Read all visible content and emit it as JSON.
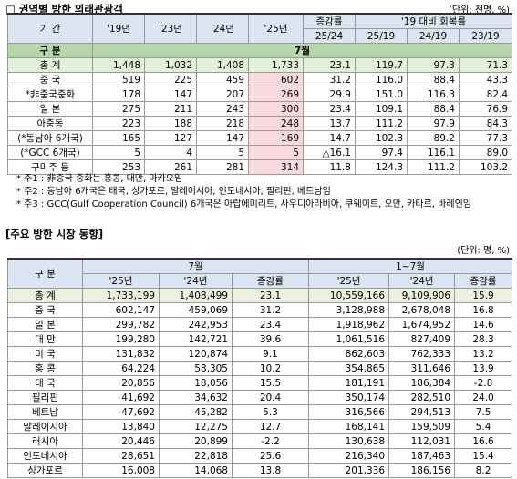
{
  "section1": {
    "title": "□ 권역별 방한 외래관광객",
    "unit": "(단위: 천명, %)",
    "header_row1": [
      "기 간",
      "'19년",
      "'23년",
      "'24년",
      "'25년",
      "증감률",
      "'19 대비 회복률"
    ],
    "header_row2": [
      "25/24",
      "25/19",
      "24/19",
      "23/19"
    ],
    "group_row": [
      "구 분",
      "7월"
    ],
    "rows": [
      [
        "총 계",
        "1,448",
        "1,032",
        "1,408",
        "1,733",
        "23.1",
        "119.7",
        "97.3",
        "71.3"
      ],
      [
        "중 국",
        "519",
        "225",
        "459",
        "602",
        "31.2",
        "116.0",
        "88.4",
        "43.3"
      ],
      [
        "*非중국중화",
        "178",
        "147",
        "207",
        "269",
        "29.9",
        "151.0",
        "116.3",
        "82.4"
      ],
      [
        "일 본",
        "275",
        "211",
        "243",
        "300",
        "23.4",
        "109.1",
        "88.4",
        "76.9"
      ],
      [
        "아중동",
        "223",
        "188",
        "218",
        "248",
        "13.7",
        "111.2",
        "97.9",
        "84.3"
      ],
      [
        "(*동남아 6개국)",
        "165",
        "127",
        "147",
        "169",
        "14.7",
        "102.3",
        "89.2",
        "77.3"
      ],
      [
        "(*GCC 6개국)",
        "5",
        "4",
        "5",
        "5",
        "△16.1",
        "97.4",
        "116.1",
        "89.0"
      ],
      [
        "구미주 등",
        "253",
        "261",
        "281",
        "314",
        "11.8",
        "124.3",
        "111.2",
        "103.2"
      ]
    ],
    "notes": [
      "* 주1 : 非중국 중화는 홍콩, 대만, 마카오임",
      "* 주2 : 동남아 6개국은 태국, 싱가포르, 말레이시아, 인도네시아, 필리핀, 베트남임",
      "* 주3 : GCC(Gulf Cooperation Council) 6개국은 아랍에미리트, 사우디아라비아, 쿠웨이트, 오만, 카타르, 바레인임"
    ]
  },
  "section2": {
    "title": "[주요 방한 시장 동향]",
    "unit": "(단위: 명, %)",
    "header_row1": [
      "구 분",
      "7월",
      "1~7월"
    ],
    "header_row2": [
      "'25년",
      "'24년",
      "증감률",
      "'25년",
      "'24년",
      "증감률"
    ],
    "rows": [
      [
        "총 계",
        "1,733,199",
        "1,408,499",
        "23.1",
        "10,559,166",
        "9,109,906",
        "15.9"
      ],
      [
        "중 국",
        "602,147",
        "459,069",
        "31.2",
        "3,128,988",
        "2,678,048",
        "16.8"
      ],
      [
        "일 본",
        "299,782",
        "242,953",
        "23.4",
        "1,918,962",
        "1,674,952",
        "14.6"
      ],
      [
        "대 만",
        "199,280",
        "142,721",
        "39.6",
        "1,061,516",
        "827,409",
        "28.3"
      ],
      [
        "미 국",
        "131,832",
        "120,874",
        "9.1",
        "862,603",
        "762,333",
        "13.2"
      ],
      [
        "홍 콩",
        "64,224",
        "58,305",
        "10.2",
        "354,865",
        "311,646",
        "13.9"
      ],
      [
        "태 국",
        "20,856",
        "18,056",
        "15.5",
        "181,191",
        "186,384",
        "-2.8"
      ],
      [
        "필리핀",
        "41,692",
        "34,632",
        "20.4",
        "350,174",
        "282,510",
        "24.0"
      ],
      [
        "베트남",
        "47,692",
        "45,282",
        "5.3",
        "316,566",
        "294,513",
        "7.5"
      ],
      [
        "말레이시아",
        "13,840",
        "12,275",
        "12.7",
        "168,141",
        "159,509",
        "5.4"
      ],
      [
        "러시아",
        "20,446",
        "20,899",
        "-2.2",
        "130,638",
        "112,031",
        "16.6"
      ],
      [
        "인도네시아",
        "28,651",
        "22,818",
        "25.6",
        "216,340",
        "187,463",
        "15.4"
      ],
      [
        "싱가포르",
        "16,008",
        "14,068",
        "13.8",
        "201,336",
        "186,156",
        "8.2"
      ]
    ]
  }
}
